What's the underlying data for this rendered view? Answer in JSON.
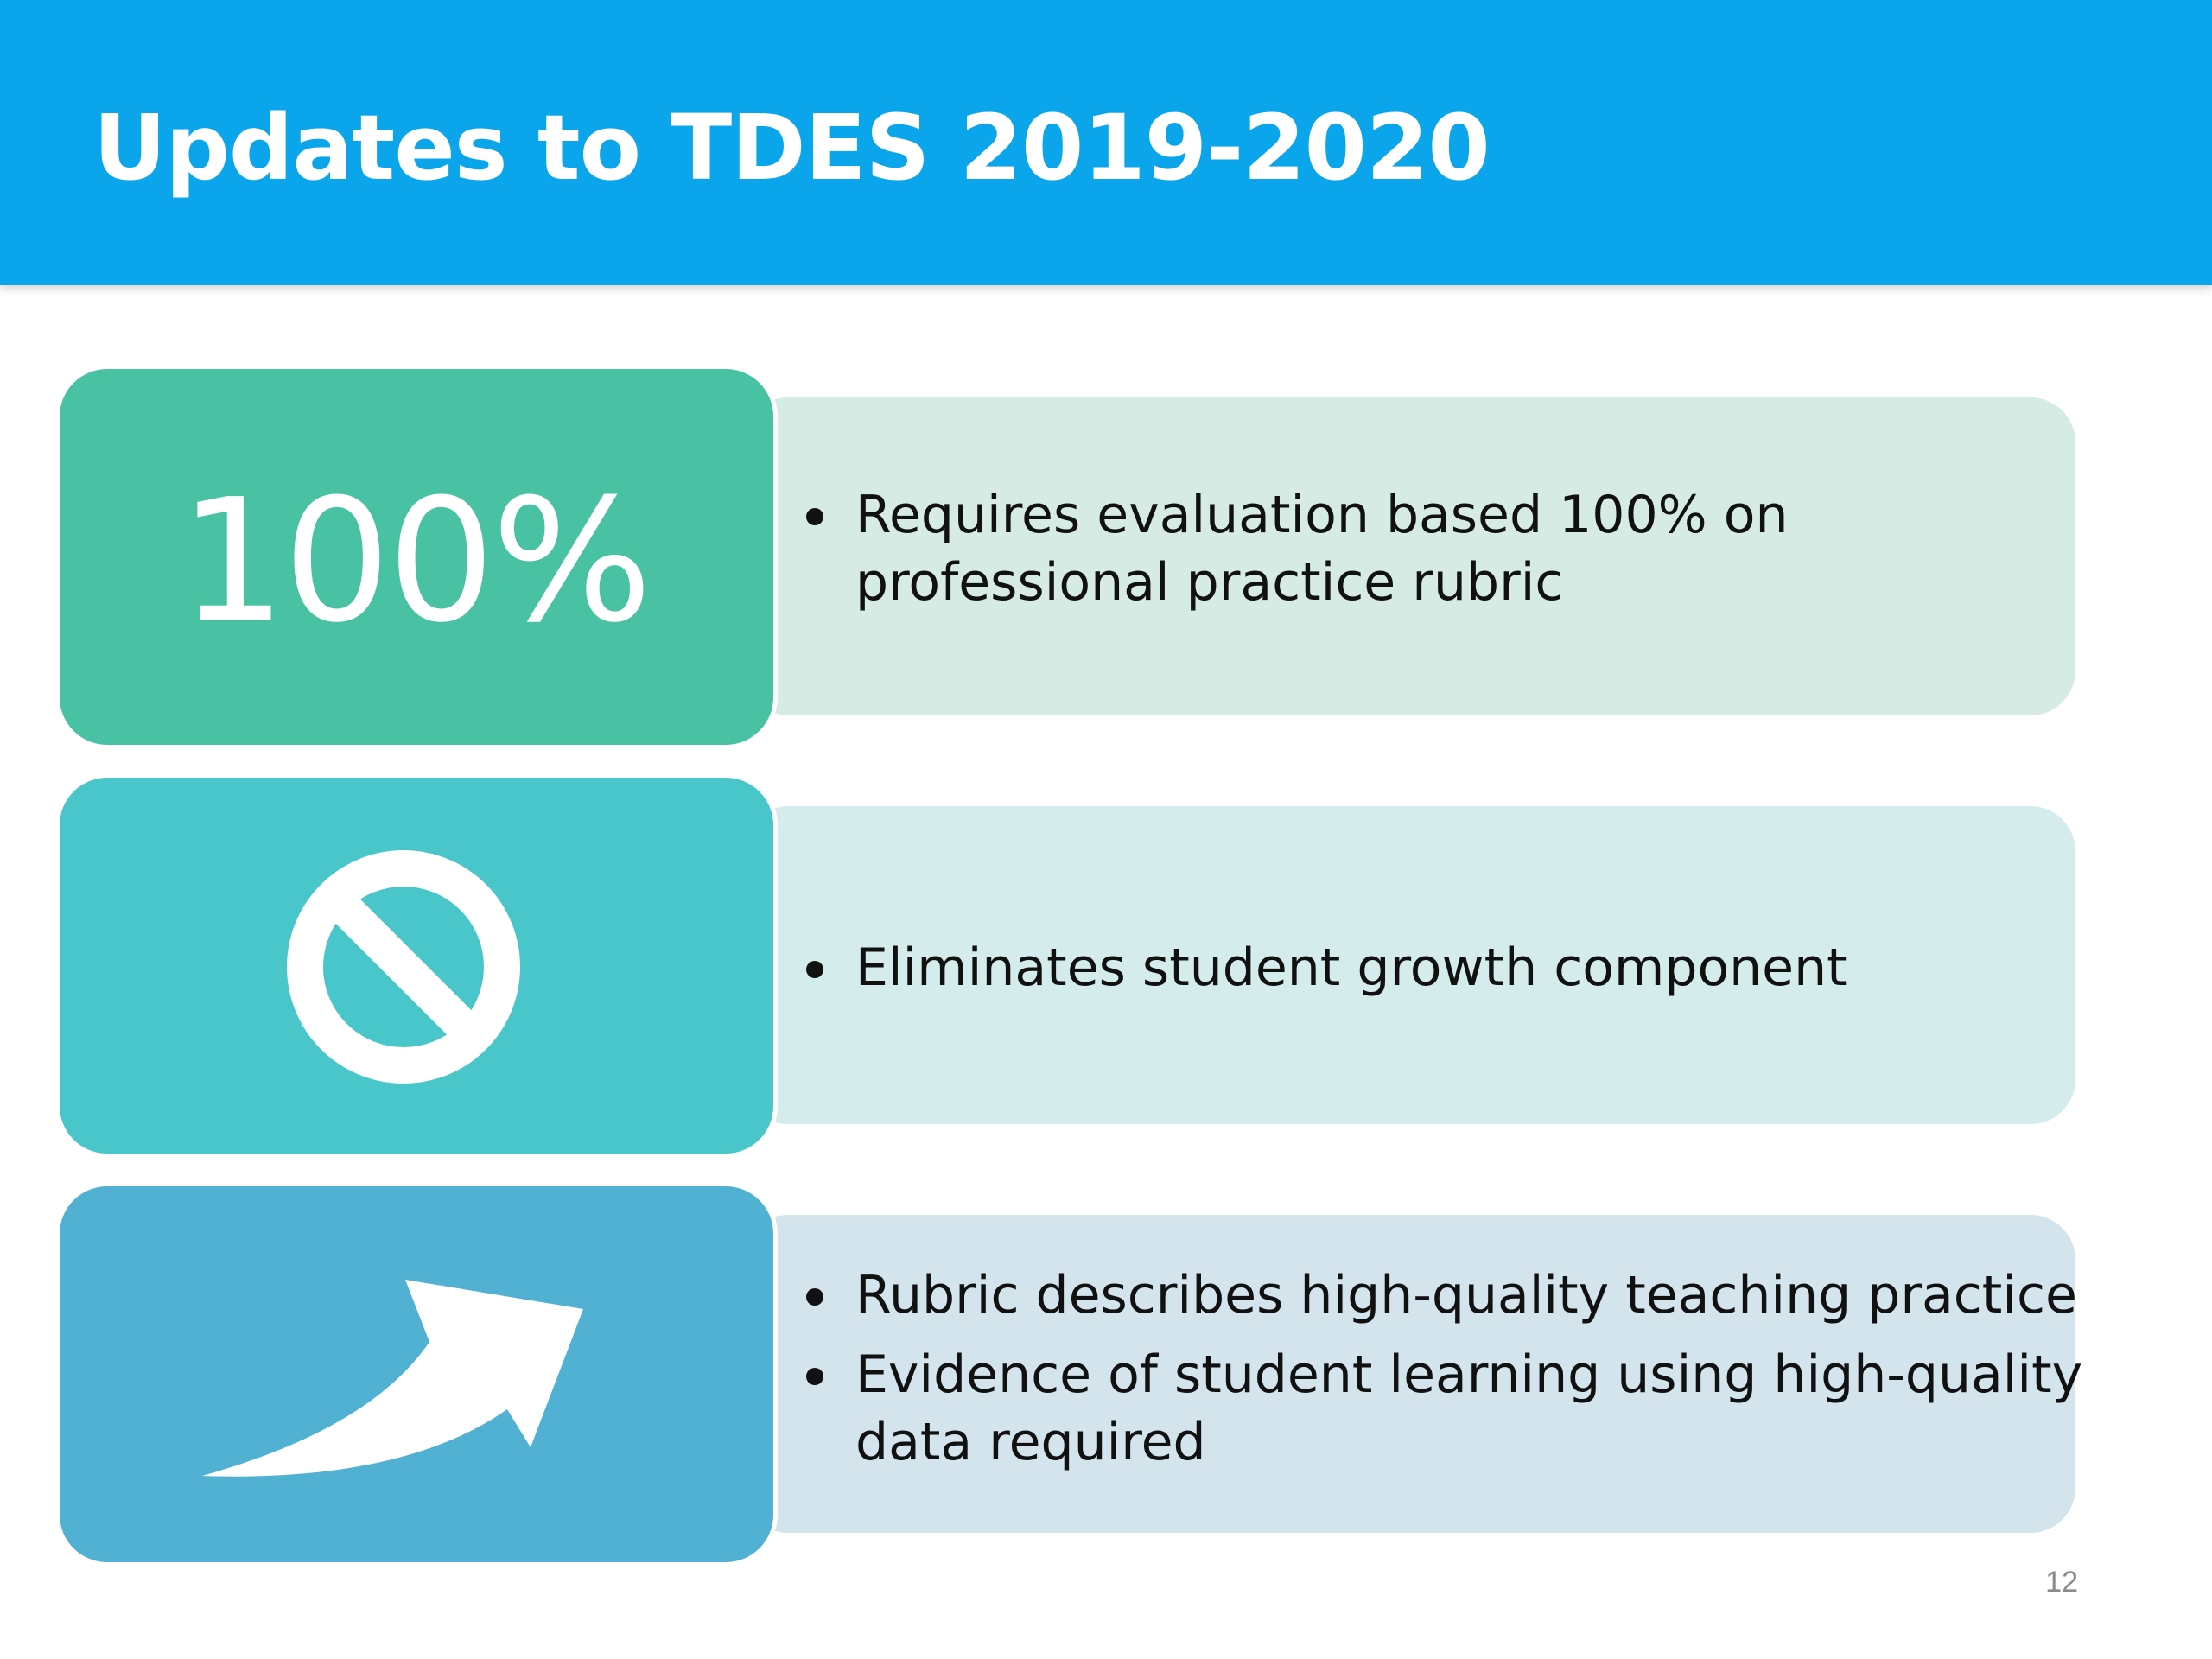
{
  "slide": {
    "title": "Updates to TDES 2019-2020",
    "page_number": "12"
  },
  "colors": {
    "title_bar": "#0ba5ec",
    "row1_icon_bg": "#48c2a2",
    "row1_text_bg": "#d5ebe3",
    "row2_icon_bg": "#49c6c9",
    "row2_text_bg": "#d5ecec",
    "row3_icon_bg": "#50b1d2",
    "row3_text_bg": "#d3e4ec"
  },
  "rows": [
    {
      "icon": "percent-text",
      "icon_text": "100%",
      "bullets": [
        "Requires evaluation based 100% on\nprofessional practice rubric"
      ]
    },
    {
      "icon": "prohibited-icon",
      "bullets": [
        "Eliminates student growth component"
      ]
    },
    {
      "icon": "curved-arrow-up-right-icon",
      "bullets": [
        "Rubric describes high-quality teaching practice",
        "Evidence of student learning using high-quality\ndata required"
      ]
    }
  ]
}
